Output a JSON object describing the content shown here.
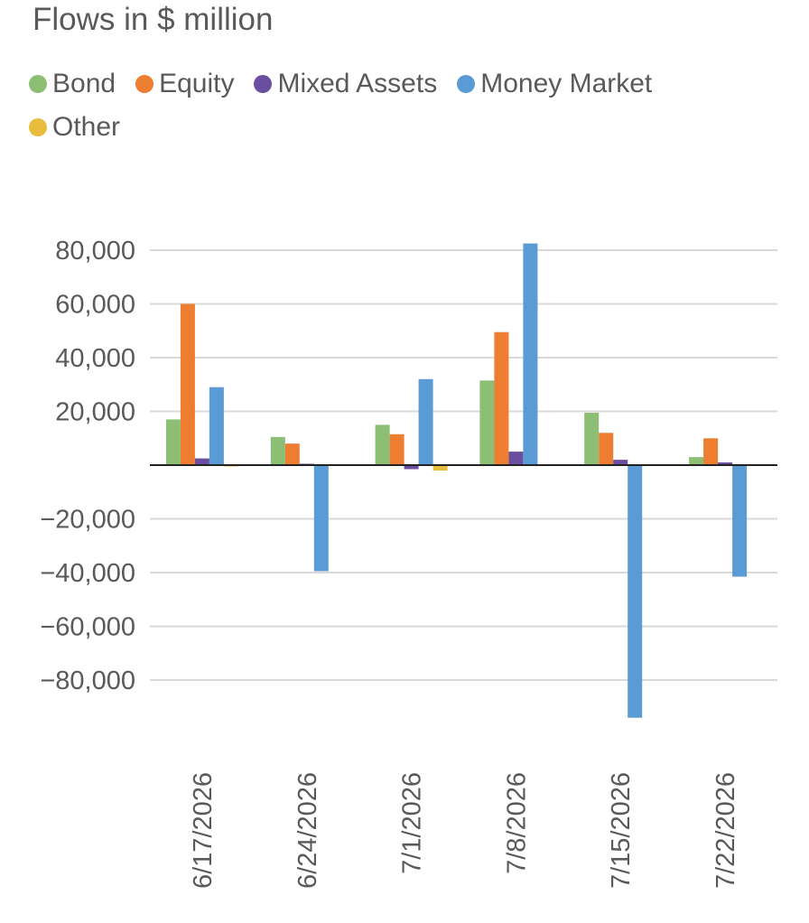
{
  "chart_data": {
    "type": "bar",
    "title": "Flows in $ million",
    "xlabel": "",
    "ylabel": "",
    "categories": [
      "6/17/2026",
      "6/24/2026",
      "7/1/2026",
      "7/8/2026",
      "7/15/2026",
      "7/22/2026"
    ],
    "series": [
      {
        "name": "Bond",
        "color": "#8CBE74",
        "values": [
          17000,
          10500,
          15000,
          31500,
          19500,
          3000
        ]
      },
      {
        "name": "Equity",
        "color": "#ED7D31",
        "values": [
          60000,
          8000,
          11500,
          49500,
          12000,
          10000
        ]
      },
      {
        "name": "Mixed Assets",
        "color": "#6A4FA0",
        "values": [
          2500,
          500,
          -1500,
          5000,
          2000,
          1000
        ]
      },
      {
        "name": "Money Market",
        "color": "#5B9BD5",
        "values": [
          29000,
          -39500,
          32000,
          82500,
          -94000,
          -41500
        ]
      },
      {
        "name": "Other",
        "color": "#E8BC3C",
        "values": [
          -500,
          0,
          -2000,
          0,
          0,
          0
        ]
      }
    ],
    "yticks": [
      "80,000",
      "60,000",
      "40,000",
      "20,000",
      "",
      "−20,000",
      "−40,000",
      "−60,000",
      "−80,000"
    ],
    "ylim": [
      -100000,
      80000
    ],
    "grid": true,
    "legend_position": "top-left"
  }
}
